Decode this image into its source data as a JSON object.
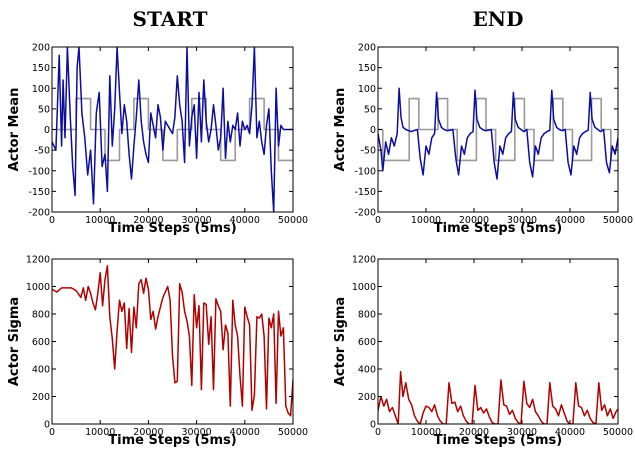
{
  "columns": [
    "START",
    "END"
  ],
  "chart_data": [
    {
      "type": "line",
      "panel": "start-mean",
      "xlabel": "Time Steps (5ms)",
      "ylabel": "Actor Mean",
      "xlim": [
        0,
        50000
      ],
      "ylim": [
        -200,
        200
      ],
      "xticks": [
        0,
        10000,
        20000,
        30000,
        40000,
        50000
      ],
      "yticks": [
        -200,
        -150,
        -100,
        -50,
        0,
        50,
        100,
        150,
        200
      ],
      "series": [
        {
          "color": "#999999",
          "type": "step",
          "x": [
            0,
            2000,
            5000,
            8000,
            11000,
            14000,
            17000,
            20000,
            23000,
            26000,
            29000,
            32000,
            35000,
            38000,
            41000,
            44000,
            47000,
            50000
          ],
          "values": [
            0,
            0,
            75,
            0,
            -75,
            0,
            75,
            0,
            -75,
            0,
            75,
            0,
            -75,
            0,
            75,
            0,
            -75,
            -75
          ]
        },
        {
          "color": "#0d0da0",
          "x": [
            0,
            800,
            1500,
            2000,
            2300,
            2700,
            3200,
            3800,
            4300,
            4800,
            5200,
            5600,
            6200,
            6800,
            7400,
            8000,
            8600,
            9200,
            9800,
            10400,
            11000,
            11500,
            12000,
            12500,
            13000,
            13500,
            14000,
            14500,
            15000,
            15500,
            16000,
            16500,
            17000,
            17500,
            18000,
            18500,
            19000,
            19500,
            20000,
            20500,
            21000,
            21500,
            22000,
            22500,
            23000,
            23500,
            24000,
            24500,
            25000,
            25500,
            26000,
            26500,
            27000,
            27500,
            28000,
            28500,
            29000,
            29500,
            30000,
            30500,
            31000,
            31500,
            32000,
            32500,
            33000,
            33500,
            34000,
            34500,
            35000,
            35500,
            36000,
            36500,
            37000,
            37500,
            38000,
            38500,
            39000,
            39500,
            40000,
            40500,
            41000,
            41500,
            42000,
            42500,
            43000,
            43500,
            44000,
            44500,
            45000,
            45500,
            46000,
            46500,
            47000,
            47500,
            48000,
            48500,
            49000,
            49500,
            50000
          ],
          "values": [
            -30,
            -50,
            180,
            -40,
            120,
            -20,
            200,
            30,
            -90,
            -160,
            150,
            200,
            40,
            -20,
            -110,
            -50,
            -180,
            40,
            90,
            -90,
            -60,
            -150,
            130,
            -40,
            50,
            200,
            90,
            -10,
            60,
            20,
            -60,
            -120,
            -40,
            30,
            120,
            20,
            -30,
            -60,
            -80,
            40,
            10,
            -20,
            60,
            30,
            -50,
            20,
            10,
            0,
            -10,
            30,
            130,
            60,
            20,
            -80,
            200,
            -40,
            30,
            60,
            -70,
            90,
            -30,
            120,
            20,
            -30,
            0,
            60,
            10,
            -50,
            -20,
            100,
            -70,
            20,
            -30,
            10,
            0,
            40,
            -40,
            20,
            0,
            10,
            -10,
            60,
            200,
            -20,
            20,
            -30,
            -60,
            10,
            50,
            -100,
            -200,
            100,
            -40,
            10,
            0,
            0,
            0,
            0,
            0
          ]
        }
      ]
    },
    {
      "type": "line",
      "panel": "end-mean",
      "xlabel": "Time Steps (5ms)",
      "ylabel": "Actor Mean",
      "xlim": [
        0,
        50000
      ],
      "ylim": [
        -200,
        200
      ],
      "xticks": [
        0,
        10000,
        20000,
        30000,
        40000,
        50000
      ],
      "yticks": [
        -200,
        -150,
        -100,
        -50,
        0,
        50,
        100,
        150,
        200
      ],
      "series": [
        {
          "color": "#999999",
          "type": "step",
          "x": [
            0,
            1000,
            4500,
            6500,
            8500,
            11000,
            12500,
            14500,
            16500,
            19500,
            20500,
            22500,
            24500,
            27500,
            28500,
            30500,
            32500,
            35500,
            36500,
            38500,
            40500,
            43500,
            44500,
            46500,
            48500,
            50000
          ],
          "values": [
            0,
            -75,
            -75,
            75,
            0,
            0,
            75,
            0,
            -75,
            -75,
            75,
            0,
            -75,
            -75,
            75,
            0,
            -75,
            -75,
            75,
            0,
            -75,
            -75,
            75,
            0,
            -75,
            -75
          ]
        },
        {
          "color": "#0d0da0",
          "x": [
            0,
            600,
            1000,
            1600,
            2200,
            2800,
            3400,
            4000,
            4400,
            4800,
            5200,
            5800,
            6400,
            7000,
            7600,
            8200,
            8800,
            9400,
            10000,
            10600,
            11200,
            11800,
            12200,
            12600,
            13200,
            13800,
            14400,
            15000,
            15600,
            16200,
            16800,
            17400,
            18000,
            18600,
            19200,
            19800,
            20200,
            20600,
            21200,
            21800,
            22400,
            23000,
            23600,
            24200,
            24800,
            25400,
            26000,
            26600,
            27200,
            27800,
            28200,
            28600,
            29200,
            29800,
            30400,
            31000,
            31600,
            32200,
            32800,
            33400,
            34000,
            34600,
            35200,
            35800,
            36200,
            36600,
            37200,
            37800,
            38400,
            39000,
            39600,
            40200,
            40800,
            41400,
            42000,
            42600,
            43200,
            43800,
            44200,
            44600,
            45200,
            45800,
            46400,
            47000,
            47600,
            48200,
            48800,
            49400,
            50000
          ],
          "values": [
            -10,
            -50,
            -100,
            -30,
            -60,
            -20,
            -40,
            -10,
            100,
            30,
            5,
            0,
            -3,
            -5,
            -2,
            0,
            -70,
            -110,
            -40,
            -60,
            -20,
            -10,
            90,
            25,
            5,
            0,
            -3,
            -2,
            0,
            -70,
            -110,
            -40,
            -60,
            -20,
            -10,
            -5,
            95,
            25,
            5,
            0,
            -3,
            -2,
            0,
            -80,
            -120,
            -40,
            -60,
            -20,
            -10,
            -5,
            90,
            25,
            5,
            0,
            -5,
            0,
            -80,
            -115,
            -40,
            -60,
            -20,
            -10,
            -5,
            -2,
            95,
            25,
            5,
            0,
            -3,
            0,
            -80,
            -110,
            -40,
            -60,
            -20,
            -10,
            -5,
            -2,
            90,
            25,
            5,
            0,
            -5,
            0,
            -80,
            -105,
            -40,
            -60,
            -20
          ]
        }
      ]
    },
    {
      "type": "line",
      "panel": "start-sigma",
      "xlabel": "Time Steps (5ms)",
      "ylabel": "Actor Sigma",
      "xlim": [
        0,
        50000
      ],
      "ylim": [
        0,
        1200
      ],
      "xticks": [
        0,
        10000,
        20000,
        30000,
        40000,
        50000
      ],
      "yticks": [
        0,
        200,
        400,
        600,
        800,
        1000,
        1200
      ],
      "series": [
        {
          "color": "#b00000",
          "x": [
            0,
            1000,
            2000,
            3000,
            4000,
            5000,
            6000,
            6500,
            7000,
            7500,
            8000,
            8500,
            9000,
            9500,
            10000,
            10500,
            11000,
            11500,
            12000,
            12500,
            13000,
            13500,
            14000,
            14500,
            15000,
            15500,
            16000,
            16500,
            17000,
            17500,
            18000,
            18500,
            19000,
            19500,
            20000,
            20500,
            21000,
            21500,
            22000,
            22500,
            23000,
            23500,
            24000,
            24500,
            25000,
            25500,
            26000,
            26500,
            27000,
            27500,
            28000,
            28500,
            29000,
            29500,
            30000,
            30500,
            31000,
            31500,
            32000,
            32500,
            33000,
            33500,
            34000,
            34500,
            35000,
            35500,
            36000,
            36500,
            37000,
            37500,
            38000,
            38500,
            39000,
            39500,
            40000,
            40500,
            41000,
            41500,
            42000,
            42500,
            43000,
            43500,
            44000,
            44500,
            45000,
            45500,
            46000,
            46500,
            47000,
            47500,
            48000,
            48500,
            49000,
            49500,
            50000
          ],
          "values": [
            980,
            960,
            990,
            990,
            990,
            970,
            920,
            990,
            900,
            1000,
            950,
            880,
            830,
            950,
            1100,
            860,
            1050,
            1150,
            780,
            620,
            400,
            680,
            900,
            820,
            880,
            550,
            840,
            520,
            850,
            700,
            1020,
            1050,
            950,
            1060,
            980,
            760,
            820,
            690,
            780,
            850,
            920,
            960,
            1000,
            900,
            500,
            300,
            310,
            1020,
            960,
            820,
            750,
            640,
            280,
            940,
            700,
            860,
            250,
            880,
            870,
            580,
            780,
            250,
            910,
            860,
            820,
            540,
            720,
            660,
            130,
            900,
            720,
            640,
            350,
            130,
            850,
            780,
            720,
            100,
            210,
            780,
            770,
            800,
            640,
            110,
            770,
            700,
            800,
            150,
            820,
            640,
            700,
            130,
            80,
            60,
            320
          ]
        }
      ]
    },
    {
      "type": "line",
      "panel": "end-sigma",
      "xlabel": "Time Steps (5ms)",
      "ylabel": "Actor Sigma",
      "xlim": [
        0,
        50000
      ],
      "ylim": [
        0,
        1200
      ],
      "xticks": [
        0,
        10000,
        20000,
        30000,
        40000,
        50000
      ],
      "yticks": [
        0,
        200,
        400,
        600,
        800,
        1000,
        1200
      ],
      "series": [
        {
          "color": "#b00000",
          "x": [
            0,
            600,
            1200,
            1800,
            2400,
            3000,
            3600,
            4200,
            4700,
            5200,
            5800,
            6400,
            7000,
            7600,
            8200,
            8800,
            9400,
            10000,
            10600,
            11200,
            11800,
            12400,
            13000,
            13600,
            14200,
            14800,
            15400,
            16000,
            16600,
            17200,
            17800,
            18400,
            19000,
            19600,
            20200,
            20800,
            21400,
            22000,
            22600,
            23200,
            23800,
            24400,
            25000,
            25600,
            26200,
            26800,
            27400,
            28000,
            28600,
            29200,
            29800,
            30400,
            31000,
            31600,
            32200,
            32800,
            33400,
            34000,
            34600,
            35200,
            35800,
            36400,
            37000,
            37600,
            38200,
            38800,
            39400,
            40000,
            40600,
            41200,
            41800,
            42400,
            43000,
            43600,
            44200,
            44800,
            45400,
            46000,
            46600,
            47200,
            47800,
            48400,
            49000,
            49600,
            50000
          ],
          "values": [
            100,
            200,
            130,
            180,
            90,
            120,
            60,
            0,
            380,
            200,
            300,
            180,
            140,
            60,
            20,
            0,
            80,
            130,
            120,
            90,
            140,
            60,
            20,
            0,
            0,
            300,
            150,
            160,
            90,
            130,
            60,
            20,
            0,
            0,
            280,
            100,
            120,
            80,
            110,
            50,
            10,
            0,
            0,
            320,
            140,
            130,
            70,
            100,
            40,
            10,
            0,
            310,
            150,
            120,
            180,
            90,
            60,
            20,
            0,
            0,
            300,
            130,
            110,
            60,
            140,
            80,
            20,
            0,
            0,
            300,
            130,
            120,
            60,
            100,
            40,
            10,
            0,
            300,
            100,
            140,
            60,
            110,
            40,
            90,
            110
          ]
        }
      ]
    }
  ]
}
